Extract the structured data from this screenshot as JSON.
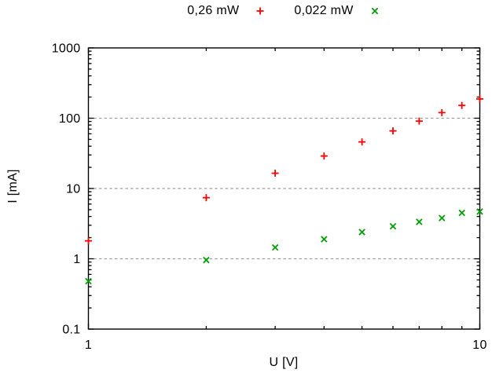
{
  "chart": {
    "xlabel": "U [V]",
    "ylabel": "I [mA]",
    "legend": [
      {
        "label": "0,26 mW",
        "marker": "plus",
        "color": "#ff0000"
      },
      {
        "label": "0,022 mW",
        "marker": "x",
        "color": "#00a000"
      }
    ]
  },
  "chart_data": {
    "type": "scatter",
    "x_scale": "log",
    "y_scale": "log",
    "xlim": [
      1,
      10
    ],
    "ylim": [
      0.1,
      1000
    ],
    "xlabel": "U [V]",
    "ylabel": "I [mA]",
    "x": [
      1,
      2,
      3,
      4,
      5,
      6,
      7,
      8,
      9,
      10
    ],
    "series": [
      {
        "name": "0,26 mW",
        "marker": "plus",
        "color": "#ff0000",
        "values": [
          1.8,
          7.4,
          16.5,
          29,
          46,
          66,
          91,
          120,
          152,
          188
        ]
      },
      {
        "name": "0,022 mW",
        "marker": "x",
        "color": "#00a000",
        "values": [
          0.48,
          0.96,
          1.45,
          1.9,
          2.4,
          2.9,
          3.35,
          3.8,
          4.5,
          4.7
        ]
      }
    ],
    "xticks": [
      {
        "value": 1,
        "label": "1"
      },
      {
        "value": 10,
        "label": "10"
      }
    ],
    "yticks": [
      {
        "value": 0.1,
        "label": "0.1"
      },
      {
        "value": 1,
        "label": "1"
      },
      {
        "value": 10,
        "label": "10"
      },
      {
        "value": 100,
        "label": "100"
      },
      {
        "value": 1000,
        "label": "1000"
      }
    ],
    "grid": {
      "horizontal_at": [
        1,
        10,
        100
      ],
      "style": "dashed",
      "color": "#a0a0a0"
    },
    "legend_position": "top-center-outside",
    "axis_color": "#000000"
  }
}
